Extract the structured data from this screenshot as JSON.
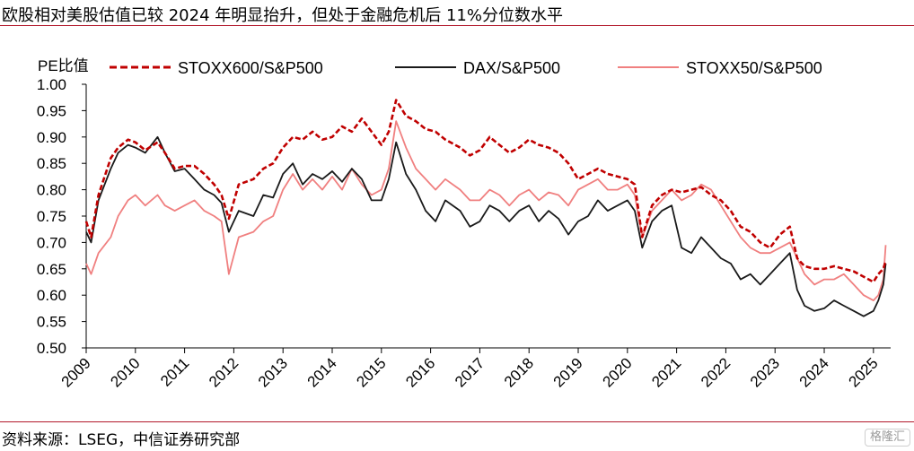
{
  "header": {
    "title": "欧股相对美股估值已较 2024 年明显抬升，但处于金融危机后 11%分位数水平"
  },
  "footer": {
    "source": "资料来源：LSEG，中信证券研究部",
    "watermark": "格隆汇"
  },
  "chart_data": {
    "type": "line",
    "ylabel": "PE比值",
    "ylim": [
      0.5,
      1.0
    ],
    "yticks": [
      "1.00",
      "0.95",
      "0.90",
      "0.85",
      "0.80",
      "0.75",
      "0.70",
      "0.65",
      "0.60",
      "0.55",
      "0.50"
    ],
    "xlim": [
      2009.0,
      2025.35
    ],
    "xticks": [
      "2009",
      "2010",
      "2011",
      "2012",
      "2013",
      "2014",
      "2015",
      "2016",
      "2017",
      "2018",
      "2019",
      "2020",
      "2021",
      "2022",
      "2023",
      "2024",
      "2025"
    ],
    "grid": false,
    "legend_position": "top",
    "colors": {
      "STOXX600/S&P500": "#c00000",
      "DAX/S&P500": "#1a1a1a",
      "STOXX50/S&P500": "#f08080"
    },
    "series": [
      {
        "name": "STOXX600/S&P500",
        "style": "dashed",
        "x": [
          2009.0,
          2009.1,
          2009.25,
          2009.5,
          2009.65,
          2009.85,
          2010.0,
          2010.2,
          2010.45,
          2010.6,
          2010.8,
          2011.0,
          2011.2,
          2011.4,
          2011.6,
          2011.75,
          2011.9,
          2012.1,
          2012.4,
          2012.6,
          2012.8,
          2013.0,
          2013.2,
          2013.4,
          2013.6,
          2013.8,
          2014.0,
          2014.2,
          2014.4,
          2014.6,
          2014.8,
          2015.0,
          2015.15,
          2015.3,
          2015.5,
          2015.7,
          2015.9,
          2016.1,
          2016.3,
          2016.6,
          2016.8,
          2017.0,
          2017.2,
          2017.4,
          2017.6,
          2017.8,
          2018.0,
          2018.2,
          2018.4,
          2018.6,
          2018.8,
          2019.0,
          2019.2,
          2019.4,
          2019.6,
          2019.8,
          2020.0,
          2020.15,
          2020.3,
          2020.5,
          2020.7,
          2020.9,
          2021.1,
          2021.3,
          2021.5,
          2021.7,
          2021.9,
          2022.1,
          2022.3,
          2022.5,
          2022.7,
          2022.9,
          2023.1,
          2023.3,
          2023.45,
          2023.6,
          2023.8,
          2024.0,
          2024.2,
          2024.4,
          2024.6,
          2024.8,
          2025.0,
          2025.1,
          2025.2,
          2025.25
        ],
        "y": [
          0.74,
          0.71,
          0.79,
          0.86,
          0.88,
          0.895,
          0.89,
          0.875,
          0.89,
          0.87,
          0.84,
          0.845,
          0.845,
          0.83,
          0.81,
          0.79,
          0.745,
          0.81,
          0.82,
          0.84,
          0.85,
          0.88,
          0.9,
          0.895,
          0.91,
          0.895,
          0.9,
          0.92,
          0.91,
          0.935,
          0.91,
          0.885,
          0.91,
          0.97,
          0.94,
          0.93,
          0.915,
          0.91,
          0.895,
          0.88,
          0.865,
          0.875,
          0.9,
          0.885,
          0.87,
          0.88,
          0.895,
          0.885,
          0.88,
          0.87,
          0.85,
          0.82,
          0.83,
          0.84,
          0.83,
          0.825,
          0.82,
          0.81,
          0.71,
          0.77,
          0.79,
          0.8,
          0.795,
          0.8,
          0.805,
          0.79,
          0.78,
          0.76,
          0.73,
          0.72,
          0.7,
          0.69,
          0.715,
          0.73,
          0.67,
          0.655,
          0.65,
          0.65,
          0.655,
          0.65,
          0.645,
          0.635,
          0.625,
          0.64,
          0.65,
          0.665
        ]
      },
      {
        "name": "DAX/S&P500",
        "style": "solid",
        "x": [
          2009.0,
          2009.1,
          2009.25,
          2009.5,
          2009.65,
          2009.85,
          2010.0,
          2010.2,
          2010.45,
          2010.6,
          2010.8,
          2011.0,
          2011.2,
          2011.4,
          2011.6,
          2011.75,
          2011.9,
          2012.1,
          2012.4,
          2012.6,
          2012.8,
          2013.0,
          2013.2,
          2013.4,
          2013.6,
          2013.8,
          2014.0,
          2014.2,
          2014.4,
          2014.6,
          2014.8,
          2015.0,
          2015.15,
          2015.3,
          2015.5,
          2015.7,
          2015.9,
          2016.1,
          2016.3,
          2016.6,
          2016.8,
          2017.0,
          2017.2,
          2017.4,
          2017.6,
          2017.8,
          2018.0,
          2018.2,
          2018.4,
          2018.6,
          2018.8,
          2019.0,
          2019.2,
          2019.4,
          2019.6,
          2019.8,
          2020.0,
          2020.15,
          2020.3,
          2020.5,
          2020.7,
          2020.9,
          2021.1,
          2021.3,
          2021.5,
          2021.7,
          2021.9,
          2022.1,
          2022.3,
          2022.5,
          2022.7,
          2022.9,
          2023.1,
          2023.3,
          2023.45,
          2023.6,
          2023.8,
          2024.0,
          2024.2,
          2024.4,
          2024.6,
          2024.8,
          2025.0,
          2025.1,
          2025.2,
          2025.25
        ],
        "y": [
          0.72,
          0.7,
          0.78,
          0.84,
          0.87,
          0.885,
          0.88,
          0.87,
          0.9,
          0.87,
          0.835,
          0.84,
          0.82,
          0.8,
          0.79,
          0.775,
          0.72,
          0.76,
          0.75,
          0.79,
          0.785,
          0.83,
          0.85,
          0.81,
          0.83,
          0.82,
          0.835,
          0.815,
          0.84,
          0.82,
          0.78,
          0.78,
          0.82,
          0.89,
          0.83,
          0.8,
          0.76,
          0.74,
          0.78,
          0.76,
          0.73,
          0.74,
          0.77,
          0.76,
          0.74,
          0.76,
          0.77,
          0.74,
          0.76,
          0.745,
          0.715,
          0.74,
          0.75,
          0.78,
          0.76,
          0.77,
          0.78,
          0.76,
          0.69,
          0.74,
          0.76,
          0.77,
          0.69,
          0.68,
          0.71,
          0.69,
          0.67,
          0.66,
          0.63,
          0.64,
          0.62,
          0.64,
          0.66,
          0.68,
          0.61,
          0.58,
          0.57,
          0.575,
          0.59,
          0.58,
          0.57,
          0.56,
          0.57,
          0.59,
          0.62,
          0.66
        ]
      },
      {
        "name": "STOXX50/S&P500",
        "style": "solid",
        "x": [
          2009.0,
          2009.1,
          2009.25,
          2009.5,
          2009.65,
          2009.85,
          2010.0,
          2010.2,
          2010.45,
          2010.6,
          2010.8,
          2011.0,
          2011.2,
          2011.4,
          2011.6,
          2011.75,
          2011.9,
          2012.1,
          2012.4,
          2012.6,
          2012.8,
          2013.0,
          2013.2,
          2013.4,
          2013.6,
          2013.8,
          2014.0,
          2014.2,
          2014.4,
          2014.6,
          2014.8,
          2015.0,
          2015.15,
          2015.3,
          2015.5,
          2015.7,
          2015.9,
          2016.1,
          2016.3,
          2016.6,
          2016.8,
          2017.0,
          2017.2,
          2017.4,
          2017.6,
          2017.8,
          2018.0,
          2018.2,
          2018.4,
          2018.6,
          2018.8,
          2019.0,
          2019.2,
          2019.4,
          2019.6,
          2019.8,
          2020.0,
          2020.15,
          2020.3,
          2020.5,
          2020.7,
          2020.9,
          2021.1,
          2021.3,
          2021.5,
          2021.7,
          2021.9,
          2022.1,
          2022.3,
          2022.5,
          2022.7,
          2022.9,
          2023.1,
          2023.3,
          2023.45,
          2023.6,
          2023.8,
          2024.0,
          2024.2,
          2024.4,
          2024.6,
          2024.8,
          2025.0,
          2025.1,
          2025.2,
          2025.25
        ],
        "y": [
          0.66,
          0.64,
          0.68,
          0.71,
          0.75,
          0.78,
          0.79,
          0.77,
          0.79,
          0.77,
          0.76,
          0.77,
          0.78,
          0.76,
          0.75,
          0.74,
          0.64,
          0.71,
          0.72,
          0.74,
          0.75,
          0.8,
          0.83,
          0.8,
          0.82,
          0.8,
          0.825,
          0.8,
          0.84,
          0.81,
          0.79,
          0.8,
          0.84,
          0.93,
          0.88,
          0.84,
          0.82,
          0.8,
          0.82,
          0.8,
          0.78,
          0.78,
          0.8,
          0.79,
          0.77,
          0.79,
          0.8,
          0.78,
          0.795,
          0.79,
          0.77,
          0.8,
          0.81,
          0.82,
          0.8,
          0.8,
          0.81,
          0.79,
          0.71,
          0.76,
          0.78,
          0.8,
          0.78,
          0.79,
          0.81,
          0.8,
          0.77,
          0.74,
          0.71,
          0.69,
          0.68,
          0.68,
          0.69,
          0.7,
          0.67,
          0.64,
          0.62,
          0.63,
          0.63,
          0.64,
          0.62,
          0.6,
          0.59,
          0.6,
          0.63,
          0.695
        ]
      }
    ]
  }
}
